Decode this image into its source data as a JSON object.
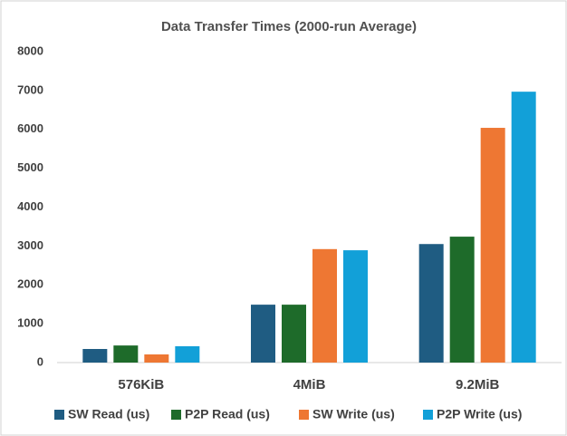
{
  "chart_data": {
    "type": "bar",
    "title": "Data Transfer Times (2000-run Average)",
    "categories": [
      "576KiB",
      "4MiB",
      "9.2MiB"
    ],
    "series": [
      {
        "name": "SW Read (us)",
        "color": "#1f5c82",
        "values": [
          350,
          1490,
          3050
        ]
      },
      {
        "name": "P2P Read (us)",
        "color": "#1e6b2a",
        "values": [
          440,
          1490,
          3240
        ]
      },
      {
        "name": "SW Write (us)",
        "color": "#ee7733",
        "values": [
          210,
          2920,
          6040
        ]
      },
      {
        "name": "P2P Write (us)",
        "color": "#12a0d8",
        "values": [
          420,
          2890,
          6970
        ]
      }
    ],
    "ylim": [
      0,
      8000
    ],
    "yticks": [
      0,
      1000,
      2000,
      3000,
      4000,
      5000,
      6000,
      7000,
      8000
    ],
    "grid": false,
    "legend": "bottom"
  }
}
